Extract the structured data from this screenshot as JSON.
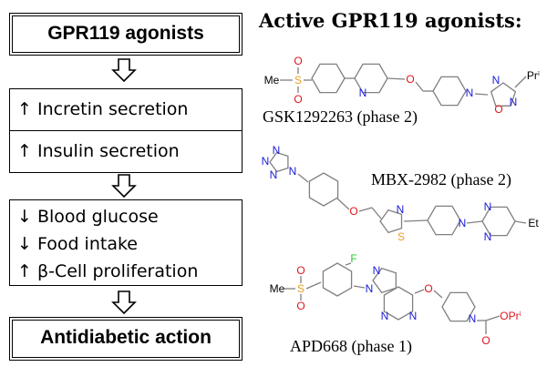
{
  "flow": {
    "box1": "GPR119 agonists",
    "box2": [
      "↑ Incretin secretion",
      "↑ Insulin secretion"
    ],
    "box3": [
      "↓ Blood glucose",
      "↓ Food intake",
      "↑ β-Cell proliferation"
    ],
    "box4": "Antidiabetic action",
    "arrow_icon": "hollow-down-arrow"
  },
  "title": "Active GPR119 agonists:",
  "compounds": [
    {
      "caption": "GSK1292263 (phase 2)",
      "atoms": {
        "me": "Me",
        "s": "S",
        "o1": "O",
        "o2": "O",
        "n1": "N",
        "o3": "O",
        "n2": "N",
        "n3": "N",
        "o4": "O",
        "n4": "N",
        "pr": "Prⁱ"
      }
    },
    {
      "caption": "MBX-2982 (phase 2)",
      "atoms": {
        "t1": "N",
        "t2": "N",
        "t3": "N",
        "t4": "N",
        "o": "O",
        "n1": "N",
        "s": "S",
        "n2": "N",
        "n3": "N",
        "n4": "N",
        "et": "Et"
      }
    },
    {
      "caption": "APD668 (phase 1)",
      "atoms": {
        "me": "Me",
        "s": "S",
        "o1": "O",
        "o2": "O",
        "f": "F",
        "n1": "N",
        "n2": "N",
        "n3": "N",
        "n4": "N",
        "o3": "O",
        "n5": "N",
        "o4": "O",
        "opr": "OPrⁱ"
      }
    }
  ],
  "colors": {
    "nitrogen": "#1a1adc",
    "oxygen": "#e0141e",
    "sulfur": "#e8a020",
    "fluorine": "#22cc22",
    "bond": "#808080"
  }
}
